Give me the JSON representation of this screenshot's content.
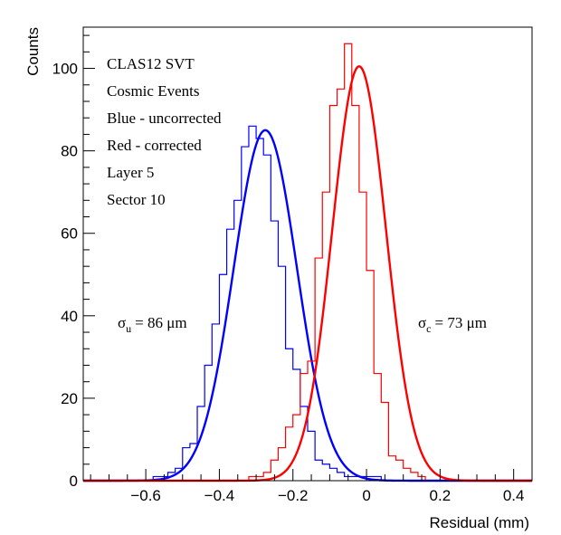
{
  "chart_data": {
    "type": "bar",
    "xlabel": "Residual (mm)",
    "ylabel": "Counts",
    "xlim": [
      -0.77,
      0.45
    ],
    "ylim": [
      0,
      110
    ],
    "x_ticks": [
      "−0.6",
      "−0.4",
      "−0.2",
      "0",
      "0.2",
      "0.4"
    ],
    "x_tick_values": [
      -0.6,
      -0.4,
      -0.2,
      0,
      0.2,
      0.4
    ],
    "y_ticks": [
      "0",
      "20",
      "40",
      "60",
      "80",
      "100"
    ],
    "y_tick_values": [
      0,
      20,
      40,
      60,
      80,
      100
    ],
    "annotations": [
      "CLAS12 SVT",
      "Cosmic Events",
      "Blue - uncorrected",
      "Red - corrected",
      "Layer 5",
      "Sector 10"
    ],
    "sigma_u": {
      "symbol": "σ",
      "sub": "u",
      "text": "= 86 μm"
    },
    "sigma_c": {
      "symbol": "σ",
      "sub": "c",
      "text": "= 73 μm"
    },
    "bin_width": 0.02,
    "series": [
      {
        "color": "#0000ff",
        "bin_start": -0.58,
        "values": [
          1,
          1,
          2,
          3,
          8,
          9,
          18,
          28,
          38,
          50,
          61,
          68,
          81,
          86,
          83,
          79,
          63,
          52,
          32,
          27,
          18,
          12,
          5,
          4,
          3,
          2,
          1,
          1,
          1,
          1,
          1
        ],
        "fit": {
          "mean": -0.275,
          "sigma": 0.086,
          "amp": 85.0
        }
      },
      {
        "color": "#ff0000",
        "bin_start": -0.32,
        "values": [
          1,
          1,
          2,
          5,
          8,
          13,
          16,
          26,
          29,
          54,
          70,
          91,
          95,
          106,
          91,
          70,
          51,
          26,
          19,
          6,
          5,
          3,
          2,
          1
        ],
        "fit": {
          "mean": -0.02,
          "sigma": 0.073,
          "amp": 100.5
        }
      }
    ]
  }
}
